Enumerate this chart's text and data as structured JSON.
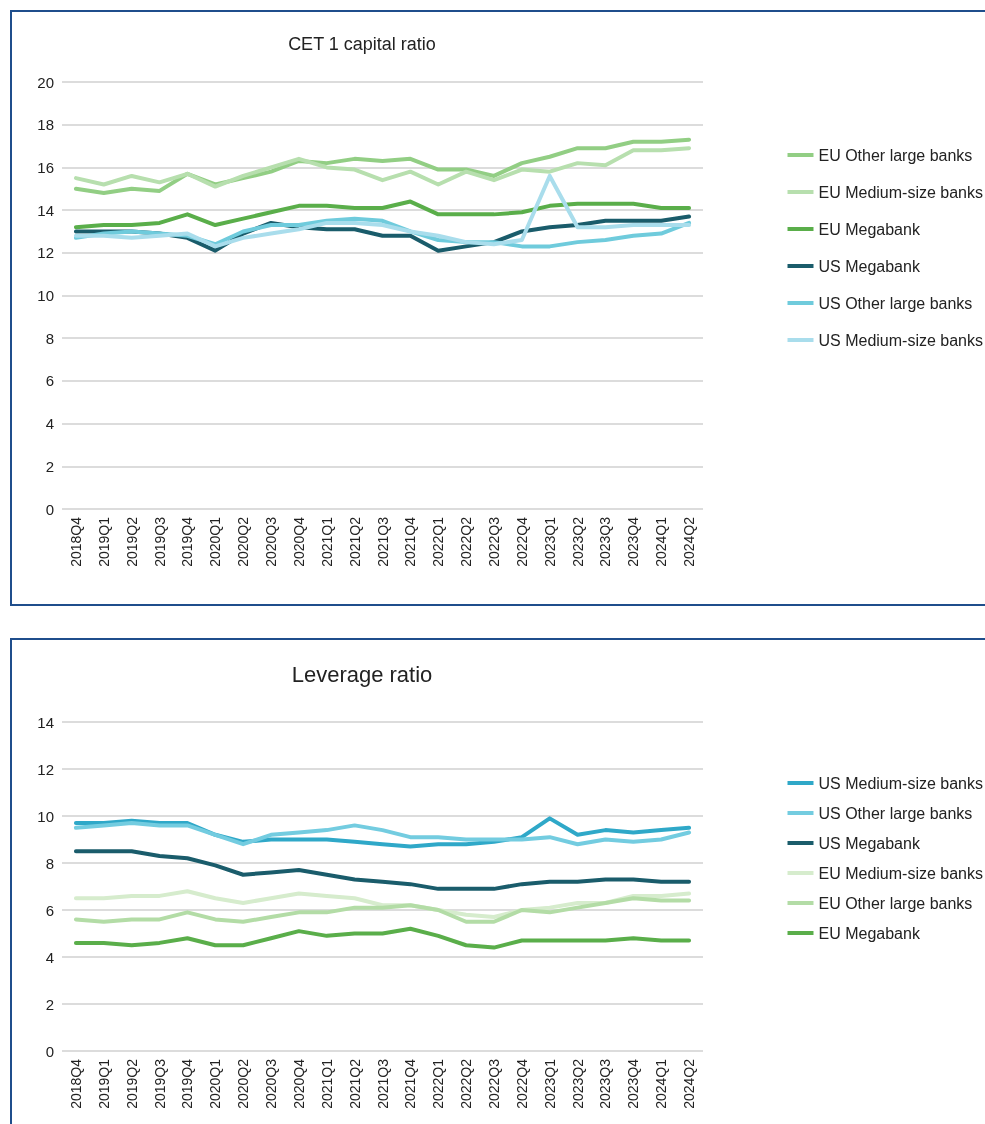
{
  "chart_data": [
    {
      "type": "line",
      "title": "CET 1 capital ratio",
      "categories": [
        "2018Q4",
        "2019Q1",
        "2019Q2",
        "2019Q3",
        "2019Q4",
        "2020Q1",
        "2020Q2",
        "2020Q3",
        "2020Q4",
        "2021Q1",
        "2021Q2",
        "2021Q3",
        "2021Q4",
        "2022Q1",
        "2022Q2",
        "2022Q3",
        "2022Q4",
        "2023Q1",
        "2023Q2",
        "2023Q3",
        "2023Q4",
        "2024Q1",
        "2024Q2"
      ],
      "ylim": [
        0,
        20
      ],
      "yticks": [
        0,
        2,
        4,
        6,
        8,
        10,
        12,
        14,
        16,
        18,
        20
      ],
      "grid": "y",
      "legend": "right",
      "marker": "none",
      "line_style": "solid",
      "series": [
        {
          "name": "EU Other large banks",
          "color": "#92ce84",
          "values": [
            15.0,
            14.8,
            15.0,
            14.9,
            15.7,
            15.2,
            15.5,
            15.8,
            16.3,
            16.2,
            16.4,
            16.3,
            16.4,
            15.9,
            15.9,
            15.6,
            16.2,
            16.5,
            16.9,
            16.9,
            17.2,
            17.2,
            17.3
          ]
        },
        {
          "name": "EU Medium-size banks",
          "color": "#b7dfae",
          "values": [
            15.5,
            15.2,
            15.6,
            15.3,
            15.7,
            15.1,
            15.6,
            16.0,
            16.4,
            16.0,
            15.9,
            15.4,
            15.8,
            15.2,
            15.8,
            15.4,
            15.9,
            15.8,
            16.2,
            16.1,
            16.8,
            16.8,
            16.9
          ]
        },
        {
          "name": "EU Megabank",
          "color": "#5aae4a",
          "values": [
            13.2,
            13.3,
            13.3,
            13.4,
            13.8,
            13.3,
            13.6,
            13.9,
            14.2,
            14.2,
            14.1,
            14.1,
            14.4,
            13.8,
            13.8,
            13.8,
            13.9,
            14.2,
            14.3,
            14.3,
            14.3,
            14.1,
            14.1
          ]
        },
        {
          "name": "US Megabank",
          "color": "#1a5c6b",
          "values": [
            13.0,
            13.0,
            13.0,
            12.9,
            12.7,
            12.1,
            12.9,
            13.4,
            13.2,
            13.1,
            13.1,
            12.8,
            12.8,
            12.1,
            12.3,
            12.5,
            13.0,
            13.2,
            13.3,
            13.5,
            13.5,
            13.5,
            13.7
          ]
        },
        {
          "name": "US Other large banks",
          "color": "#6fcbdc",
          "values": [
            12.7,
            12.9,
            13.0,
            12.9,
            12.8,
            12.4,
            13.0,
            13.3,
            13.3,
            13.5,
            13.6,
            13.5,
            13.0,
            12.6,
            12.5,
            12.5,
            12.3,
            12.3,
            12.5,
            12.6,
            12.8,
            12.9,
            13.4
          ]
        },
        {
          "name": "US Medium-size banks",
          "color": "#a9ddec",
          "values": [
            12.8,
            12.8,
            12.7,
            12.8,
            12.9,
            12.3,
            12.7,
            12.9,
            13.1,
            13.4,
            13.4,
            13.3,
            13.0,
            12.8,
            12.5,
            12.4,
            12.6,
            15.6,
            13.2,
            13.2,
            13.3,
            13.3,
            13.3
          ]
        }
      ]
    },
    {
      "type": "line",
      "title": "Leverage ratio",
      "categories": [
        "2018Q4",
        "2019Q1",
        "2019Q2",
        "2019Q3",
        "2019Q4",
        "2020Q1",
        "2020Q2",
        "2020Q3",
        "2020Q4",
        "2021Q1",
        "2021Q2",
        "2021Q3",
        "2021Q4",
        "2022Q1",
        "2022Q2",
        "2022Q3",
        "2022Q4",
        "2023Q1",
        "2023Q2",
        "2023Q3",
        "2023Q4",
        "2024Q1",
        "2024Q2"
      ],
      "ylim": [
        0,
        14
      ],
      "yticks": [
        0,
        2,
        4,
        6,
        8,
        10,
        12,
        14
      ],
      "grid": "y",
      "legend": "right",
      "marker": "none",
      "line_style": "solid",
      "series": [
        {
          "name": "US Medium-size banks",
          "color": "#2fa8c8",
          "values": [
            9.7,
            9.7,
            9.8,
            9.7,
            9.7,
            9.2,
            8.9,
            9.0,
            9.0,
            9.0,
            8.9,
            8.8,
            8.7,
            8.8,
            8.8,
            8.9,
            9.1,
            9.9,
            9.2,
            9.4,
            9.3,
            9.4,
            9.5
          ]
        },
        {
          "name": "US Other large banks",
          "color": "#73cce0",
          "values": [
            9.5,
            9.6,
            9.7,
            9.6,
            9.6,
            9.2,
            8.8,
            9.2,
            9.3,
            9.4,
            9.6,
            9.4,
            9.1,
            9.1,
            9.0,
            9.0,
            9.0,
            9.1,
            8.8,
            9.0,
            8.9,
            9.0,
            9.3
          ]
        },
        {
          "name": "US Megabank",
          "color": "#1a5c6b",
          "values": [
            8.5,
            8.5,
            8.5,
            8.3,
            8.2,
            7.9,
            7.5,
            7.6,
            7.7,
            7.5,
            7.3,
            7.2,
            7.1,
            6.9,
            6.9,
            6.9,
            7.1,
            7.2,
            7.2,
            7.3,
            7.3,
            7.2,
            7.2
          ]
        },
        {
          "name": "EU Medium-size banks",
          "color": "#d6eccd",
          "values": [
            6.5,
            6.5,
            6.6,
            6.6,
            6.8,
            6.5,
            6.3,
            6.5,
            6.7,
            6.6,
            6.5,
            6.2,
            6.2,
            6.0,
            5.8,
            5.7,
            6.0,
            6.1,
            6.3,
            6.3,
            6.6,
            6.6,
            6.7
          ]
        },
        {
          "name": "EU Other large banks",
          "color": "#b3dca6",
          "values": [
            5.6,
            5.5,
            5.6,
            5.6,
            5.9,
            5.6,
            5.5,
            5.7,
            5.9,
            5.9,
            6.1,
            6.1,
            6.2,
            6.0,
            5.5,
            5.5,
            6.0,
            5.9,
            6.1,
            6.3,
            6.5,
            6.4,
            6.4
          ]
        },
        {
          "name": "EU Megabank",
          "color": "#5aae4a",
          "values": [
            4.6,
            4.6,
            4.5,
            4.6,
            4.8,
            4.5,
            4.5,
            4.8,
            5.1,
            4.9,
            5.0,
            5.0,
            5.2,
            4.9,
            4.5,
            4.4,
            4.7,
            4.7,
            4.7,
            4.7,
            4.8,
            4.7,
            4.7
          ]
        }
      ]
    }
  ]
}
